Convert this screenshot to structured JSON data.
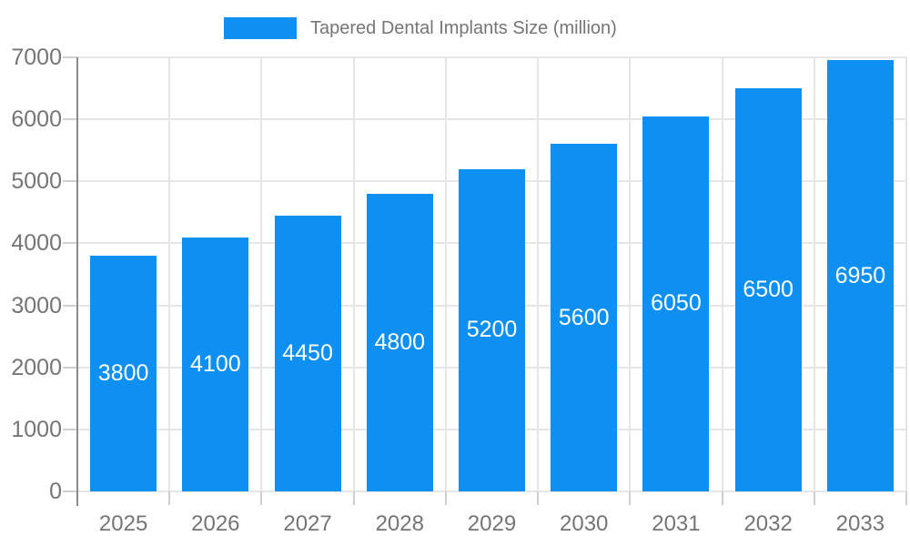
{
  "legend": {
    "label": "Tapered Dental Implants Size (million)"
  },
  "colors": {
    "bar": "#0d90f2",
    "axis_text": "#757575",
    "value_label_text": "#ffffff",
    "grid_line": "#e6e6e6",
    "tick": "#cfcfcf",
    "axis_line": "#8a8a8a",
    "background": "#ffffff"
  },
  "chart_data": {
    "type": "bar",
    "title": "Tapered Dental Implants Size (million)",
    "categories": [
      "2025",
      "2026",
      "2027",
      "2028",
      "2029",
      "2030",
      "2031",
      "2032",
      "2033"
    ],
    "values": [
      3800,
      4100,
      4450,
      4800,
      5200,
      5600,
      6050,
      6500,
      6950
    ],
    "series": [
      {
        "name": "Tapered Dental Implants Size (million)",
        "values": [
          3800,
          4100,
          4450,
          4800,
          5200,
          5600,
          6050,
          6500,
          6950
        ]
      }
    ],
    "xlabel": "",
    "ylabel": "",
    "ylim": [
      0,
      7000
    ],
    "yticks": [
      0,
      1000,
      2000,
      3000,
      4000,
      5000,
      6000,
      7000
    ],
    "grid": true,
    "legend_position": "top",
    "value_labels_position": "inside-center"
  }
}
